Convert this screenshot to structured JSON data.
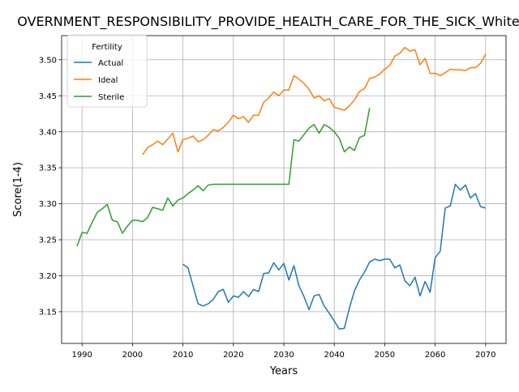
{
  "chart_data": {
    "type": "line",
    "title": "OVERNMENT_RESPONSIBILITY_PROVIDE_HEALTH_CARE_FOR_THE_SICK_White_",
    "xlabel": "Years",
    "ylabel": "Score(1-4)",
    "xlim": [
      1985.95,
      2074.05
    ],
    "ylim": [
      3.106,
      3.5335
    ],
    "xticks": [
      1990,
      2000,
      2010,
      2020,
      2030,
      2040,
      2050,
      2060,
      2070
    ],
    "yticks": [
      3.15,
      3.2,
      3.25,
      3.3,
      3.35,
      3.4,
      3.45,
      3.5
    ],
    "grid": true,
    "legend": {
      "title": "Fertility",
      "position": "top-left"
    },
    "series": [
      {
        "name": "Actual",
        "color": "#1f77b4",
        "x": [
          2010,
          2011,
          2012,
          2013,
          2014,
          2015,
          2016,
          2017,
          2018,
          2019,
          2020,
          2021,
          2022,
          2023,
          2024,
          2025,
          2026,
          2027,
          2028,
          2029,
          2030,
          2031,
          2032,
          2033,
          2034,
          2035,
          2036,
          2037,
          2038,
          2039,
          2040,
          2041,
          2042,
          2043,
          2044,
          2045,
          2046,
          2047,
          2048,
          2049,
          2050,
          2051,
          2052,
          2053,
          2054,
          2055,
          2056,
          2057,
          2058,
          2059,
          2060,
          2061,
          2062,
          2063,
          2064,
          2065,
          2066,
          2067,
          2068,
          2069,
          2070
        ],
        "y": [
          3.216,
          3.211,
          3.186,
          3.161,
          3.158,
          3.161,
          3.167,
          3.178,
          3.181,
          3.163,
          3.172,
          3.17,
          3.178,
          3.171,
          3.181,
          3.178,
          3.203,
          3.204,
          3.218,
          3.208,
          3.217,
          3.194,
          3.214,
          3.186,
          3.171,
          3.153,
          3.172,
          3.174,
          3.158,
          3.148,
          3.137,
          3.126,
          3.127,
          3.155,
          3.179,
          3.194,
          3.205,
          3.219,
          3.223,
          3.221,
          3.223,
          3.223,
          3.211,
          3.215,
          3.193,
          3.186,
          3.198,
          3.172,
          3.192,
          3.177,
          3.225,
          3.234,
          3.294,
          3.297,
          3.327,
          3.319,
          3.326,
          3.308,
          3.314,
          3.296,
          3.294
        ]
      },
      {
        "name": "Ideal",
        "color": "#ff7f0e",
        "x": [
          2002,
          2003,
          2004,
          2005,
          2006,
          2007,
          2008,
          2009,
          2010,
          2011,
          2012,
          2013,
          2014,
          2015,
          2016,
          2017,
          2018,
          2019,
          2020,
          2021,
          2022,
          2023,
          2024,
          2025,
          2026,
          2027,
          2028,
          2029,
          2030,
          2031,
          2032,
          2033,
          2034,
          2035,
          2036,
          2037,
          2038,
          2039,
          2040,
          2041,
          2042,
          2043,
          2044,
          2045,
          2046,
          2047,
          2048,
          2049,
          2050,
          2051,
          2052,
          2053,
          2054,
          2055,
          2056,
          2057,
          2058,
          2059,
          2060,
          2061,
          2062,
          2063,
          2064,
          2065,
          2066,
          2067,
          2068,
          2069,
          2070
        ],
        "y": [
          3.368,
          3.378,
          3.382,
          3.387,
          3.382,
          3.39,
          3.398,
          3.372,
          3.389,
          3.391,
          3.394,
          3.386,
          3.389,
          3.395,
          3.403,
          3.401,
          3.406,
          3.413,
          3.423,
          3.418,
          3.421,
          3.413,
          3.423,
          3.423,
          3.441,
          3.447,
          3.455,
          3.45,
          3.458,
          3.458,
          3.478,
          3.473,
          3.467,
          3.459,
          3.447,
          3.45,
          3.443,
          3.446,
          3.434,
          3.432,
          3.43,
          3.436,
          3.444,
          3.456,
          3.46,
          3.474,
          3.476,
          3.48,
          3.487,
          3.492,
          3.505,
          3.509,
          3.517,
          3.512,
          3.514,
          3.493,
          3.502,
          3.481,
          3.481,
          3.478,
          3.482,
          3.487,
          3.486,
          3.486,
          3.485,
          3.489,
          3.489,
          3.495,
          3.508
        ]
      },
      {
        "name": "Sterile",
        "color": "#2ca02c",
        "x": [
          1989,
          1990,
          1991,
          1992,
          1993,
          1994,
          1995,
          1996,
          1997,
          1998,
          1999,
          2000,
          2001,
          2002,
          2003,
          2004,
          2005,
          2006,
          2007,
          2008,
          2009,
          2010,
          2011,
          2012,
          2013,
          2014,
          2015,
          2016,
          2017,
          2018,
          2019,
          2020,
          2021,
          2022,
          2023,
          2024,
          2025,
          2026,
          2027,
          2028,
          2029,
          2030,
          2031,
          2032,
          2033,
          2034,
          2035,
          2036,
          2037,
          2038,
          2039,
          2040,
          2041,
          2042,
          2043,
          2044,
          2045,
          2046,
          2047
        ],
        "y": [
          3.241,
          3.26,
          3.259,
          3.274,
          3.288,
          3.293,
          3.299,
          3.277,
          3.275,
          3.259,
          3.269,
          3.277,
          3.277,
          3.275,
          3.281,
          3.295,
          3.293,
          3.291,
          3.308,
          3.297,
          3.305,
          3.308,
          3.314,
          3.319,
          3.325,
          3.318,
          3.326,
          3.327,
          3.327,
          3.327,
          3.327,
          3.327,
          3.327,
          3.327,
          3.327,
          3.327,
          3.327,
          3.327,
          3.327,
          3.327,
          3.327,
          3.327,
          3.327,
          3.389,
          3.387,
          3.396,
          3.405,
          3.41,
          3.398,
          3.41,
          3.406,
          3.4,
          3.391,
          3.372,
          3.379,
          3.374,
          3.392,
          3.395,
          3.433
        ]
      }
    ]
  }
}
